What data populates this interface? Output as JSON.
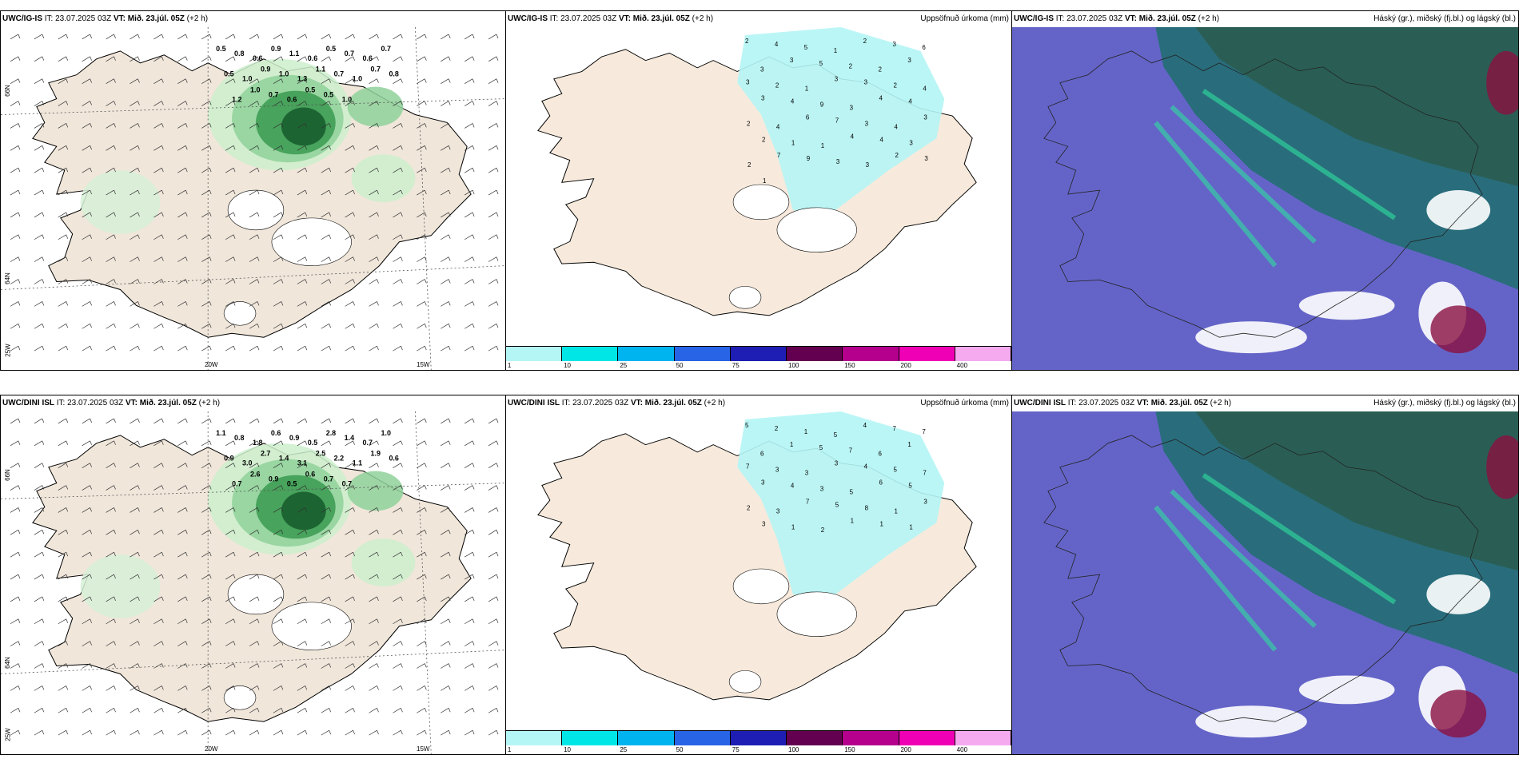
{
  "panels": [
    {
      "id": "p1",
      "model": "UWC/IG-IS",
      "it": "IT: 23.07.2025 03Z",
      "vt_label": "VT:",
      "vt": "Mið. 23.júl. 05Z",
      "lead": "(+2 h)",
      "right": "",
      "kind": "wind"
    },
    {
      "id": "p2",
      "model": "UWC/IG-IS",
      "it": "IT: 23.07.2025 03Z",
      "vt_label": "VT:",
      "vt": "Mið. 23.júl. 05Z",
      "lead": "(+2 h)",
      "right": "Uppsöfnuð úrkoma (mm)",
      "kind": "precip"
    },
    {
      "id": "p3",
      "model": "UWC/IG-IS",
      "it": "IT: 23.07.2025 03Z",
      "vt_label": "VT:",
      "vt": "Mið. 23.júl. 05Z",
      "lead": "(+2 h)",
      "right": "Háský (gr.), miðský (fj.bl.) og lágský (bl.)",
      "kind": "cloud"
    },
    {
      "id": "p4",
      "model": "UWC/DINI ISL",
      "it": "IT: 23.07.2025 03Z",
      "vt_label": "VT:",
      "vt": "Mið. 23.júl. 05Z",
      "lead": "(+2 h)",
      "right": "",
      "kind": "wind"
    },
    {
      "id": "p5",
      "model": "UWC/DINI ISL",
      "it": "IT: 23.07.2025 03Z",
      "vt_label": "VT:",
      "vt": "Mið. 23.júl. 05Z",
      "lead": "(+2 h)",
      "right": "Uppsöfnuð úrkoma (mm)",
      "kind": "precip"
    },
    {
      "id": "p6",
      "model": "UWC/DINI ISL",
      "it": "IT: 23.07.2025 03Z",
      "vt_label": "VT:",
      "vt": "Mið. 23.júl. 05Z",
      "lead": "(+2 h)",
      "right": "Háský (gr.), miðský (fj.bl.) og lágský (bl.)",
      "kind": "cloud"
    }
  ],
  "axis_labels": {
    "lon1": "20W",
    "lon2": "15W",
    "lat1": "66N",
    "lat2": "64N",
    "lon3": "25W"
  },
  "colorbar": {
    "colors": [
      "#b4f5f5",
      "#00e6e6",
      "#00b4f0",
      "#2864e6",
      "#1e1eb4",
      "#640050",
      "#b4008c",
      "#f000b4",
      "#f5aaf0"
    ],
    "ticks": [
      "1",
      "10",
      "25",
      "50",
      "75",
      "100",
      "150",
      "200",
      "400"
    ]
  },
  "precip_values": {
    "top": [
      "2",
      "4",
      "5",
      "1",
      "2",
      "3",
      "6",
      "3",
      "3",
      "5",
      "2",
      "2",
      "3",
      "3",
      "2",
      "1",
      "3",
      "3",
      "2",
      "4",
      "3",
      "4",
      "9",
      "3",
      "4",
      "4",
      "2",
      "4",
      "6",
      "7",
      "3",
      "4",
      "3",
      "2",
      "1",
      "1",
      "4",
      "4",
      "3",
      "2",
      "7",
      "9",
      "3",
      "3",
      "2",
      "3",
      "1"
    ],
    "bottom": [
      "5",
      "2",
      "1",
      "5",
      "4",
      "7",
      "7",
      "6",
      "1",
      "5",
      "7",
      "6",
      "1",
      "7",
      "3",
      "3",
      "3",
      "4",
      "5",
      "7",
      "3",
      "4",
      "3",
      "5",
      "6",
      "5",
      "2",
      "3",
      "7",
      "5",
      "8",
      "1",
      "3",
      "3",
      "1",
      "2",
      "1",
      "1",
      "1"
    ]
  },
  "wind_values": {
    "top": [
      "0.5",
      "0.8",
      "0.6",
      "0.9",
      "1.1",
      "0.6",
      "0.5",
      "0.7",
      "0.6",
      "0.7",
      "0.5",
      "1.0",
      "0.9",
      "1.0",
      "1.3",
      "1.1",
      "0.7",
      "1.0",
      "0.7",
      "0.8",
      "1.2",
      "1.0",
      "0.7",
      "0.6",
      "0.5",
      "0.5",
      "1.0"
    ],
    "bottom": [
      "1.1",
      "0.8",
      "1.8",
      "0.6",
      "0.9",
      "0.5",
      "2.8",
      "1.4",
      "0.7",
      "1.0",
      "0.9",
      "3.0",
      "2.7",
      "1.4",
      "3.1",
      "2.5",
      "2.2",
      "1.1",
      "1.9",
      "0.6",
      "0.7",
      "2.6",
      "0.9",
      "0.5",
      "0.6",
      "0.7",
      "0.7"
    ]
  }
}
